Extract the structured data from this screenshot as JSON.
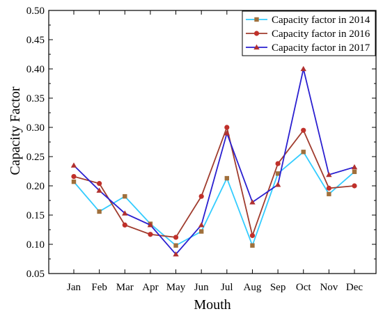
{
  "chart_data": {
    "type": "line",
    "xlabel": "Mouth",
    "ylabel": "Capacity Factor",
    "ylim": [
      0.05,
      0.5
    ],
    "yticks": [
      "0.05",
      "0.10",
      "0.15",
      "0.20",
      "0.25",
      "0.30",
      "0.35",
      "0.40",
      "0.45",
      "0.50"
    ],
    "categories": [
      "Jan",
      "Feb",
      "Mar",
      "Apr",
      "May",
      "Jun",
      "Jul",
      "Aug",
      "Sep",
      "Oct",
      "Nov",
      "Dec"
    ],
    "legend_position": "top-right",
    "grid": false,
    "series": [
      {
        "name": "Capacity factor in 2014",
        "color": "#33ccff",
        "marker_color": "#a0703c",
        "marker": "square",
        "values": [
          0.207,
          0.156,
          0.182,
          0.135,
          0.098,
          0.122,
          0.213,
          0.098,
          0.221,
          0.258,
          0.186,
          0.224
        ]
      },
      {
        "name": "Capacity factor in 2016",
        "color": "#a03c2e",
        "marker_color": "#c0302a",
        "marker": "circle",
        "values": [
          0.216,
          0.204,
          0.133,
          0.117,
          0.112,
          0.182,
          0.3,
          0.115,
          0.238,
          0.295,
          0.196,
          0.2
        ]
      },
      {
        "name": "Capacity factor in 2017",
        "color": "#2a1fd0",
        "marker_color": "#b03030",
        "marker": "triangle",
        "values": [
          0.235,
          0.192,
          0.153,
          0.133,
          0.083,
          0.133,
          0.29,
          0.172,
          0.202,
          0.4,
          0.219,
          0.232
        ]
      }
    ]
  }
}
